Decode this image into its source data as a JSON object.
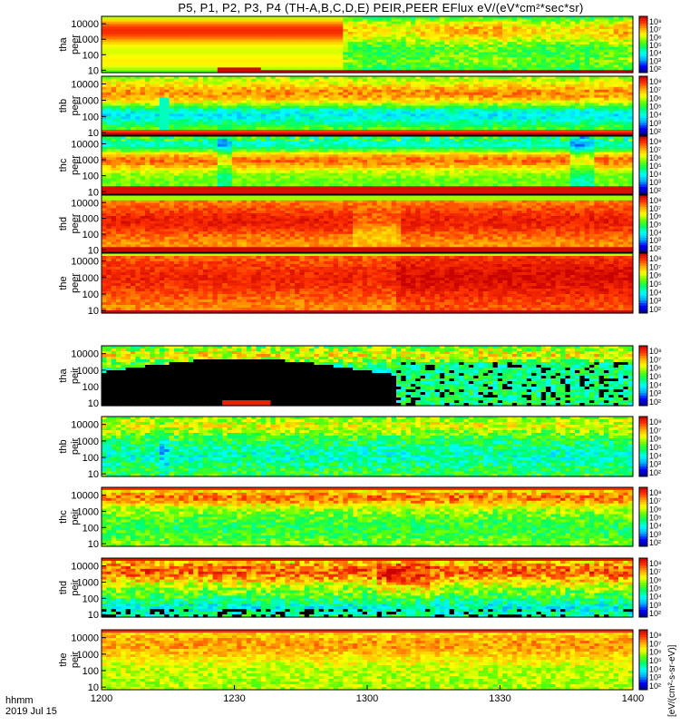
{
  "chart_data": {
    "type": "heatmap",
    "title": "P5, P1, P2, P3, P4 (TH-A,B,C,D,E) PEIR,PEER EFlux eV/(eV*cm²*sec*sr)",
    "time_axis": {
      "label_line1": "hhmm",
      "label_line2": "2019 Jul 15",
      "ticks": [
        "1200",
        "1230",
        "1300",
        "1330",
        "1400"
      ],
      "tick_minutes": [
        0,
        30,
        60,
        90,
        120
      ],
      "range_minutes": [
        0,
        120
      ]
    },
    "energy_axis": {
      "scale": "log",
      "ticks": [
        "10",
        "100",
        "1000",
        "10000"
      ],
      "range": [
        7,
        30000
      ]
    },
    "colorbar": {
      "scale": "log",
      "labels": [
        "10⁸",
        "10⁷",
        "10⁶",
        "10⁵",
        "10⁴",
        "10³",
        "10²"
      ],
      "colors": [
        "#000080",
        "#0000ff",
        "#00aaff",
        "#00ffff",
        "#00ff66",
        "#66ff00",
        "#ffff00",
        "#ffaa00",
        "#ff3300",
        "#c80000"
      ],
      "units": "[eV/(cm²-s-sr-eV)]"
    },
    "panels": [
      {
        "id": "tha-peer",
        "label_top": "tha",
        "label_bottom": "peer",
        "species": "electrons",
        "probe": "P5",
        "profile": "electron_a"
      },
      {
        "id": "thb-peer",
        "label_top": "thb",
        "label_bottom": "peer",
        "species": "electrons",
        "probe": "P1",
        "profile": "electron_b"
      },
      {
        "id": "thc-peer",
        "label_top": "thc",
        "label_bottom": "peer",
        "species": "electrons",
        "probe": "P2",
        "profile": "electron_c"
      },
      {
        "id": "thd-peer",
        "label_top": "thd",
        "label_bottom": "peer",
        "species": "electrons",
        "probe": "P3",
        "profile": "electron_d"
      },
      {
        "id": "the-peer",
        "label_top": "the",
        "label_bottom": "peer",
        "species": "electrons",
        "probe": "P4",
        "profile": "electron_e"
      },
      {
        "id": "tha-peir",
        "label_top": "tha",
        "label_bottom": "peir",
        "species": "ions",
        "probe": "P5",
        "profile": "ion_a"
      },
      {
        "id": "thb-peir",
        "label_top": "thb",
        "label_bottom": "peir",
        "species": "ions",
        "probe": "P1",
        "profile": "ion_b"
      },
      {
        "id": "thc-peir",
        "label_top": "thc",
        "label_bottom": "peir",
        "species": "ions",
        "probe": "P2",
        "profile": "ion_c"
      },
      {
        "id": "thd-peir",
        "label_top": "thd",
        "label_bottom": "peir",
        "species": "ions",
        "probe": "P3",
        "profile": "ion_d"
      },
      {
        "id": "the-peir",
        "label_top": "the",
        "label_bottom": "peir",
        "species": "ions",
        "probe": "P4",
        "profile": "ion_e"
      }
    ]
  }
}
